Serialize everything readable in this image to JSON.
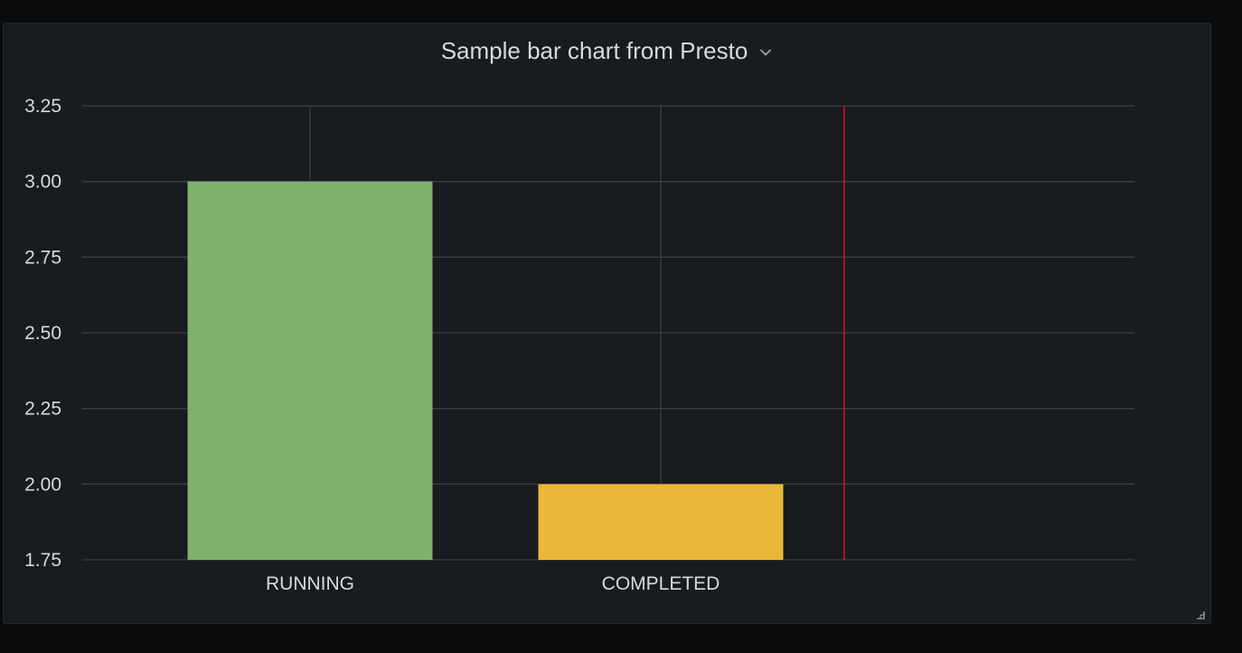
{
  "panel": {
    "title": "Sample bar chart from Presto",
    "menu_icon": "chevron-down-icon",
    "resize_icon": "resize-handle-icon"
  },
  "chart_data": {
    "type": "bar",
    "categories": [
      "RUNNING",
      "COMPLETED"
    ],
    "values": [
      3,
      2
    ],
    "colors": [
      "#7eb26d",
      "#eab839"
    ],
    "ylim": [
      1.75,
      3.25
    ],
    "yticks": [
      "1.75",
      "2.00",
      "2.25",
      "2.50",
      "2.75",
      "3.00",
      "3.25"
    ],
    "grid": true,
    "legend": "none",
    "threshold_color": "#c4162a"
  },
  "colors": {
    "background": "#0b0c0e",
    "panel": "#181b1f",
    "grid": "#3b3e43",
    "text": "#d8d9da"
  }
}
